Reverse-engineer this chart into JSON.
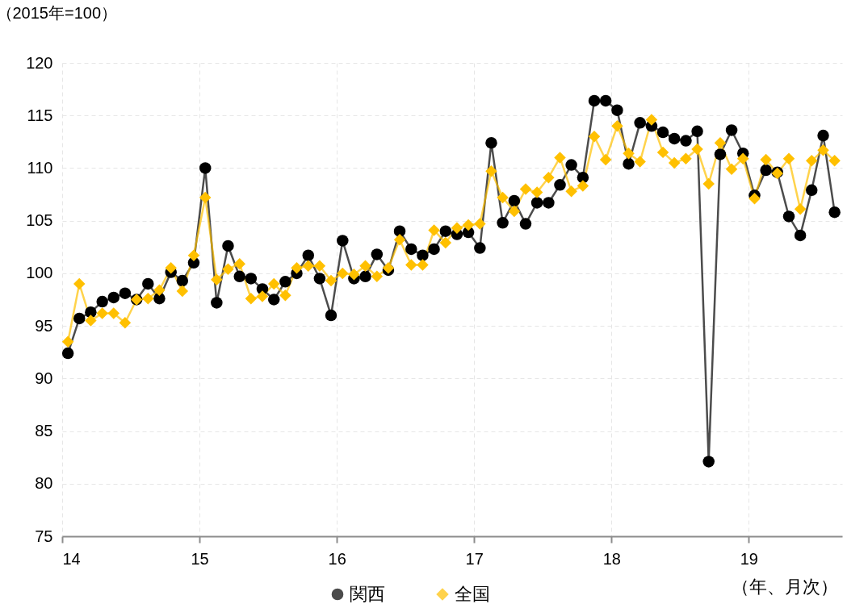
{
  "chart_data": {
    "type": "line",
    "ylabel": "（2015年=100）",
    "xlabel": "（年、月次）",
    "x": [
      14.042,
      14.125,
      14.208,
      14.292,
      14.375,
      14.458,
      14.542,
      14.625,
      14.708,
      14.792,
      14.875,
      14.958,
      15.042,
      15.125,
      15.208,
      15.292,
      15.375,
      15.458,
      15.542,
      15.625,
      15.708,
      15.792,
      15.875,
      15.958,
      16.042,
      16.125,
      16.208,
      16.292,
      16.375,
      16.458,
      16.542,
      16.625,
      16.708,
      16.792,
      16.875,
      16.958,
      17.042,
      17.125,
      17.208,
      17.292,
      17.375,
      17.458,
      17.542,
      17.625,
      17.708,
      17.792,
      17.875,
      17.958,
      18.042,
      18.125,
      18.208,
      18.292,
      18.375,
      18.458,
      18.542,
      18.625,
      18.708,
      18.792,
      18.875,
      18.958,
      19.042,
      19.125,
      19.208,
      19.292,
      19.375,
      19.458,
      19.542,
      19.625
    ],
    "series": [
      {
        "name": "関西",
        "color": "#000000",
        "marker": "circle",
        "values": [
          92.4,
          95.7,
          96.3,
          97.3,
          97.7,
          98.1,
          97.5,
          99.0,
          97.6,
          100.1,
          99.3,
          101.0,
          110.0,
          97.2,
          102.6,
          99.7,
          99.5,
          98.5,
          97.5,
          99.2,
          100.0,
          101.7,
          99.5,
          96.0,
          103.1,
          99.5,
          99.7,
          101.8,
          100.3,
          104.0,
          102.3,
          101.7,
          102.3,
          104.0,
          103.7,
          103.9,
          102.4,
          112.4,
          104.8,
          106.9,
          104.7,
          106.7,
          106.7,
          108.4,
          110.3,
          109.1,
          116.4,
          116.4,
          115.5,
          110.4,
          114.3,
          114.0,
          113.4,
          112.8,
          112.6,
          113.5,
          82.1,
          111.3,
          113.6,
          111.4,
          107.4,
          109.8,
          109.6,
          105.4,
          103.6,
          107.9,
          113.1,
          105.8
        ]
      },
      {
        "name": "全国",
        "color": "#ffc000",
        "marker": "diamond",
        "values": [
          93.5,
          99.0,
          95.5,
          96.2,
          96.2,
          95.3,
          97.5,
          97.6,
          98.4,
          100.5,
          98.3,
          101.7,
          107.2,
          99.4,
          100.4,
          100.9,
          97.6,
          97.8,
          99.0,
          97.9,
          100.5,
          100.7,
          100.7,
          99.3,
          100.0,
          99.9,
          100.7,
          99.7,
          100.5,
          103.2,
          100.8,
          100.8,
          104.1,
          102.9,
          104.3,
          104.6,
          104.7,
          109.7,
          107.2,
          105.9,
          108.0,
          107.7,
          109.1,
          111.0,
          107.8,
          108.3,
          113.0,
          110.8,
          114.0,
          111.4,
          110.6,
          114.6,
          111.5,
          110.5,
          110.9,
          111.8,
          108.5,
          112.4,
          109.9,
          110.9,
          107.1,
          110.8,
          109.5,
          110.9,
          106.1,
          110.7,
          111.7,
          110.7
        ]
      }
    ],
    "xlim": [
      14,
      19.68
    ],
    "xticks": [
      14,
      15,
      16,
      17,
      18,
      19
    ],
    "ylim": [
      75,
      120
    ],
    "yticks": [
      75,
      80,
      85,
      90,
      95,
      100,
      105,
      110,
      115,
      120
    ],
    "grid": true,
    "legend": "bottom"
  }
}
